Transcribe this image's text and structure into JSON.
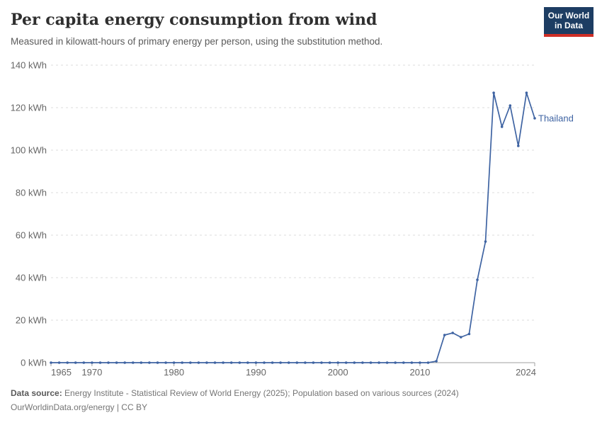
{
  "header": {
    "title": "Per capita energy consumption from wind",
    "subtitle": "Measured in kilowatt-hours of primary energy per person, using the substitution method.",
    "logo": {
      "line1": "Our World",
      "line2": "in Data",
      "background_color": "#1d3d63",
      "accent_color": "#cf2e26"
    }
  },
  "chart_data": {
    "type": "line",
    "title": "Per capita energy consumption from wind",
    "subtitle": "Measured in kilowatt-hours of primary energy per person, using the substitution method.",
    "xlabel": "",
    "ylabel": "",
    "unit": "kWh",
    "xlim": [
      1965,
      2024
    ],
    "ylim": [
      0,
      140
    ],
    "grid": "dashed-horizontal",
    "legend_position": "end-of-line-label",
    "yticks": [
      {
        "value": 0,
        "label": "0 kWh"
      },
      {
        "value": 20,
        "label": "20 kWh"
      },
      {
        "value": 40,
        "label": "40 kWh"
      },
      {
        "value": 60,
        "label": "60 kWh"
      },
      {
        "value": 80,
        "label": "80 kWh"
      },
      {
        "value": 100,
        "label": "100 kWh"
      },
      {
        "value": 120,
        "label": "120 kWh"
      },
      {
        "value": 140,
        "label": "140 kWh"
      }
    ],
    "xticks": [
      {
        "value": 1965,
        "label": "1965"
      },
      {
        "value": 1970,
        "label": "1970"
      },
      {
        "value": 1980,
        "label": "1980"
      },
      {
        "value": 1990,
        "label": "1990"
      },
      {
        "value": 2000,
        "label": "2000"
      },
      {
        "value": 2010,
        "label": "2010"
      },
      {
        "value": 2024,
        "label": "2024"
      }
    ],
    "series": [
      {
        "name": "Thailand",
        "color": "#3e63a2",
        "x": [
          1965,
          1966,
          1967,
          1968,
          1969,
          1970,
          1971,
          1972,
          1973,
          1974,
          1975,
          1976,
          1977,
          1978,
          1979,
          1980,
          1981,
          1982,
          1983,
          1984,
          1985,
          1986,
          1987,
          1988,
          1989,
          1990,
          1991,
          1992,
          1993,
          1994,
          1995,
          1996,
          1997,
          1998,
          1999,
          2000,
          2001,
          2002,
          2003,
          2004,
          2005,
          2006,
          2007,
          2008,
          2009,
          2010,
          2011,
          2012,
          2013,
          2014,
          2015,
          2016,
          2017,
          2018,
          2019,
          2020,
          2021,
          2022,
          2023,
          2024
        ],
        "values": [
          0,
          0,
          0,
          0,
          0,
          0,
          0,
          0,
          0,
          0,
          0,
          0,
          0,
          0,
          0,
          0,
          0,
          0,
          0,
          0,
          0,
          0,
          0,
          0,
          0,
          0,
          0,
          0,
          0,
          0,
          0,
          0,
          0,
          0,
          0,
          0,
          0,
          0,
          0,
          0,
          0,
          0,
          0,
          0,
          0,
          0,
          0,
          0.7,
          13,
          14,
          12,
          13.5,
          39,
          57,
          127,
          111,
          121,
          102,
          127,
          115
        ]
      }
    ],
    "colors": {
      "gridline": "#dedede",
      "axis": "#a1a1a1",
      "tick_text": "#666666"
    }
  },
  "footer": {
    "source_label": "Data source:",
    "source_text": " Energy Institute - Statistical Review of World Energy (2025); Population based on various sources (2024)",
    "attribution": "OurWorldinData.org/energy | CC BY"
  }
}
